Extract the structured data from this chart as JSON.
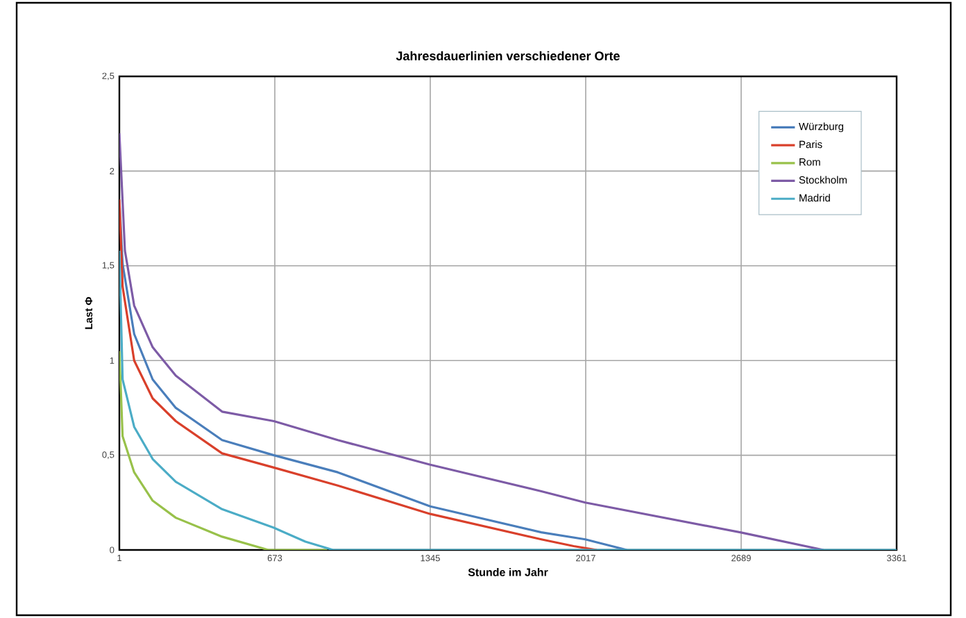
{
  "chart_data": {
    "type": "line",
    "title": "Jahresdauerlinien verschiedener Orte",
    "xlabel": "Stunde im Jahr",
    "ylabel": "Last Φ",
    "xlim": [
      1,
      3361
    ],
    "ylim": [
      0,
      2.5
    ],
    "xticks": [
      1,
      673,
      1345,
      2017,
      2689,
      3361
    ],
    "yticks": [
      0,
      {
        "value": 0.5,
        "label": "0,5"
      },
      1,
      {
        "value": 1.5,
        "label": "1,5"
      },
      2,
      {
        "value": 2.5,
        "label": "2,5"
      }
    ],
    "grid": true,
    "legend": "top right",
    "marker": "none",
    "line_style": "solid",
    "series": [
      {
        "name": "Würzburg",
        "color": "#4a7ebb",
        "x": [
          1,
          15,
          65,
          145,
          245,
          445,
          669,
          945,
          1345,
          1825,
          2015,
          2195
        ],
        "values": [
          1.85,
          1.51,
          1.14,
          0.9,
          0.75,
          0.58,
          0.5,
          0.41,
          0.23,
          0.093,
          0.056,
          0
        ]
      },
      {
        "name": "Paris",
        "color": "#d9402b",
        "x": [
          1,
          15,
          65,
          145,
          245,
          445,
          669,
          945,
          1345,
          1825,
          1965,
          2065
        ],
        "values": [
          1.85,
          1.39,
          1.0,
          0.8,
          0.68,
          0.51,
          0.435,
          0.34,
          0.19,
          0.056,
          0.02,
          0
        ]
      },
      {
        "name": "Rom",
        "color": "#98c14a",
        "x": [
          1,
          15,
          65,
          145,
          245,
          445,
          645,
          900
        ],
        "values": [
          1.05,
          0.6,
          0.41,
          0.26,
          0.17,
          0.07,
          0,
          0
        ]
      },
      {
        "name": "Stockholm",
        "color": "#7d5ba6",
        "x": [
          1,
          25,
          65,
          145,
          245,
          445,
          669,
          945,
          1345,
          1825,
          2015,
          2685,
          3045
        ],
        "values": [
          2.2,
          1.58,
          1.29,
          1.07,
          0.92,
          0.73,
          0.68,
          0.58,
          0.45,
          0.31,
          0.25,
          0.093,
          0
        ]
      },
      {
        "name": "Madrid",
        "color": "#4bacc6",
        "x": [
          1,
          15,
          65,
          145,
          245,
          445,
          669,
          805,
          925,
          3361
        ],
        "values": [
          1.58,
          0.9,
          0.65,
          0.48,
          0.36,
          0.215,
          0.117,
          0.044,
          0,
          0
        ]
      }
    ]
  }
}
